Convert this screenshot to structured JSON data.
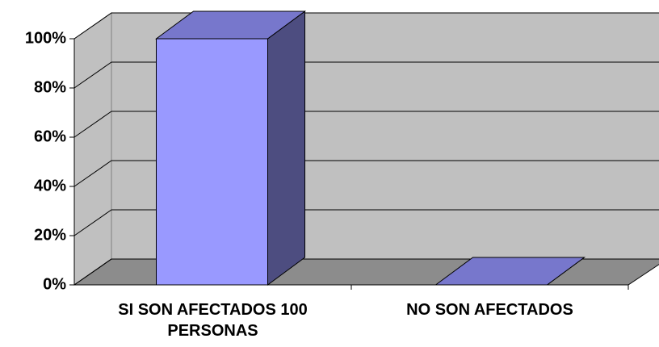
{
  "chart_data": {
    "type": "bar3d",
    "categories": [
      "SI SON AFECTADOS 100 PERSONAS",
      "NO SON AFECTADOS"
    ],
    "values": [
      100,
      0
    ],
    "color": "#9999ff",
    "ylim": [
      0,
      100
    ],
    "yticks": [
      {
        "value": 0,
        "label": "0%"
      },
      {
        "value": 20,
        "label": "20%"
      },
      {
        "value": 40,
        "label": "40%"
      },
      {
        "value": 60,
        "label": "60%"
      },
      {
        "value": 80,
        "label": "80%"
      },
      {
        "value": 100,
        "label": "100%"
      }
    ],
    "grid": true
  }
}
